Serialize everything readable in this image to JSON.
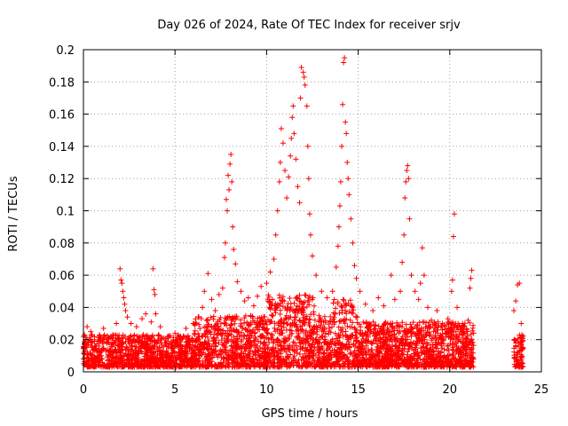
{
  "chart_data": {
    "type": "scatter",
    "title": "Day 026 of 2024, Rate Of TEC Index for receiver srjv",
    "xlabel": "GPS time / hours",
    "ylabel": "ROTI / TECUs",
    "xlim": [
      0,
      25
    ],
    "ylim": [
      0,
      0.2
    ],
    "xticks": [
      0,
      5,
      10,
      15,
      20,
      25
    ],
    "yticks": [
      0,
      0.02,
      0.04,
      0.06,
      0.08,
      0.1,
      0.12,
      0.14,
      0.16,
      0.18,
      0.2
    ],
    "grid": true,
    "marker": "plus",
    "color": "#ff0000",
    "series": [
      {
        "name": "ROTI",
        "points": [
          [
            0.0,
            0.022
          ],
          [
            0.2,
            0.028
          ],
          [
            0.4,
            0.025
          ],
          [
            0.6,
            0.019
          ],
          [
            0.9,
            0.021
          ],
          [
            1.1,
            0.027
          ],
          [
            1.3,
            0.02
          ],
          [
            1.6,
            0.023
          ],
          [
            1.8,
            0.03
          ],
          [
            2.0,
            0.064
          ],
          [
            2.05,
            0.057
          ],
          [
            2.1,
            0.055
          ],
          [
            2.15,
            0.05
          ],
          [
            2.2,
            0.046
          ],
          [
            2.25,
            0.042
          ],
          [
            2.3,
            0.038
          ],
          [
            2.4,
            0.034
          ],
          [
            2.6,
            0.03
          ],
          [
            2.9,
            0.028
          ],
          [
            3.2,
            0.033
          ],
          [
            3.4,
            0.036
          ],
          [
            3.7,
            0.031
          ],
          [
            3.8,
            0.064
          ],
          [
            3.85,
            0.051
          ],
          [
            3.9,
            0.048
          ],
          [
            3.95,
            0.036
          ],
          [
            4.2,
            0.028
          ],
          [
            4.6,
            0.022
          ],
          [
            5.0,
            0.024
          ],
          [
            5.3,
            0.02
          ],
          [
            5.6,
            0.027
          ],
          [
            6.0,
            0.03
          ],
          [
            6.3,
            0.034
          ],
          [
            6.5,
            0.04
          ],
          [
            6.6,
            0.05
          ],
          [
            6.8,
            0.061
          ],
          [
            7.0,
            0.045
          ],
          [
            7.2,
            0.038
          ],
          [
            7.4,
            0.048
          ],
          [
            7.6,
            0.052
          ],
          [
            7.7,
            0.071
          ],
          [
            7.75,
            0.08
          ],
          [
            7.8,
            0.107
          ],
          [
            7.85,
            0.1
          ],
          [
            7.9,
            0.122
          ],
          [
            7.95,
            0.113
          ],
          [
            8.0,
            0.129
          ],
          [
            8.05,
            0.135
          ],
          [
            8.1,
            0.118
          ],
          [
            8.15,
            0.09
          ],
          [
            8.2,
            0.076
          ],
          [
            8.3,
            0.067
          ],
          [
            8.4,
            0.056
          ],
          [
            8.6,
            0.05
          ],
          [
            8.8,
            0.044
          ],
          [
            9.0,
            0.046
          ],
          [
            9.3,
            0.041
          ],
          [
            9.5,
            0.047
          ],
          [
            9.7,
            0.053
          ],
          [
            10.0,
            0.055
          ],
          [
            10.2,
            0.062
          ],
          [
            10.4,
            0.07
          ],
          [
            10.5,
            0.085
          ],
          [
            10.6,
            0.1
          ],
          [
            10.7,
            0.118
          ],
          [
            10.75,
            0.13
          ],
          [
            10.8,
            0.151
          ],
          [
            10.9,
            0.142
          ],
          [
            11.0,
            0.125
          ],
          [
            11.1,
            0.108
          ],
          [
            11.2,
            0.121
          ],
          [
            11.3,
            0.134
          ],
          [
            11.35,
            0.145
          ],
          [
            11.4,
            0.158
          ],
          [
            11.45,
            0.165
          ],
          [
            11.5,
            0.148
          ],
          [
            11.6,
            0.132
          ],
          [
            11.7,
            0.115
          ],
          [
            11.8,
            0.105
          ],
          [
            11.85,
            0.17
          ],
          [
            11.9,
            0.189
          ],
          [
            12.0,
            0.186
          ],
          [
            12.05,
            0.183
          ],
          [
            12.1,
            0.178
          ],
          [
            12.2,
            0.165
          ],
          [
            12.25,
            0.14
          ],
          [
            12.3,
            0.12
          ],
          [
            12.35,
            0.098
          ],
          [
            12.4,
            0.085
          ],
          [
            12.5,
            0.072
          ],
          [
            12.7,
            0.06
          ],
          [
            13.0,
            0.05
          ],
          [
            13.3,
            0.046
          ],
          [
            13.6,
            0.05
          ],
          [
            13.8,
            0.065
          ],
          [
            13.9,
            0.078
          ],
          [
            13.95,
            0.09
          ],
          [
            14.0,
            0.103
          ],
          [
            14.05,
            0.118
          ],
          [
            14.1,
            0.14
          ],
          [
            14.15,
            0.166
          ],
          [
            14.2,
            0.192
          ],
          [
            14.25,
            0.195
          ],
          [
            14.3,
            0.155
          ],
          [
            14.35,
            0.148
          ],
          [
            14.4,
            0.13
          ],
          [
            14.45,
            0.12
          ],
          [
            14.5,
            0.11
          ],
          [
            14.6,
            0.095
          ],
          [
            14.7,
            0.08
          ],
          [
            14.8,
            0.066
          ],
          [
            14.9,
            0.058
          ],
          [
            15.1,
            0.05
          ],
          [
            15.4,
            0.042
          ],
          [
            15.8,
            0.038
          ],
          [
            16.1,
            0.046
          ],
          [
            16.4,
            0.041
          ],
          [
            16.8,
            0.06
          ],
          [
            17.0,
            0.045
          ],
          [
            17.3,
            0.05
          ],
          [
            17.4,
            0.068
          ],
          [
            17.5,
            0.085
          ],
          [
            17.55,
            0.108
          ],
          [
            17.6,
            0.118
          ],
          [
            17.65,
            0.125
          ],
          [
            17.7,
            0.128
          ],
          [
            17.75,
            0.12
          ],
          [
            17.8,
            0.095
          ],
          [
            17.9,
            0.06
          ],
          [
            18.1,
            0.05
          ],
          [
            18.3,
            0.045
          ],
          [
            18.4,
            0.055
          ],
          [
            18.5,
            0.077
          ],
          [
            18.6,
            0.06
          ],
          [
            18.8,
            0.04
          ],
          [
            19.0,
            0.032
          ],
          [
            19.3,
            0.038
          ],
          [
            19.6,
            0.03
          ],
          [
            19.9,
            0.033
          ],
          [
            20.1,
            0.05
          ],
          [
            20.15,
            0.057
          ],
          [
            20.2,
            0.084
          ],
          [
            20.25,
            0.098
          ],
          [
            20.4,
            0.04
          ],
          [
            20.7,
            0.03
          ],
          [
            21.0,
            0.032
          ],
          [
            21.1,
            0.052
          ],
          [
            21.15,
            0.058
          ],
          [
            21.2,
            0.063
          ],
          [
            21.3,
            0.024
          ],
          [
            23.5,
            0.038
          ],
          [
            23.6,
            0.044
          ],
          [
            23.7,
            0.054
          ],
          [
            23.8,
            0.055
          ],
          [
            23.9,
            0.03
          ]
        ]
      }
    ]
  }
}
